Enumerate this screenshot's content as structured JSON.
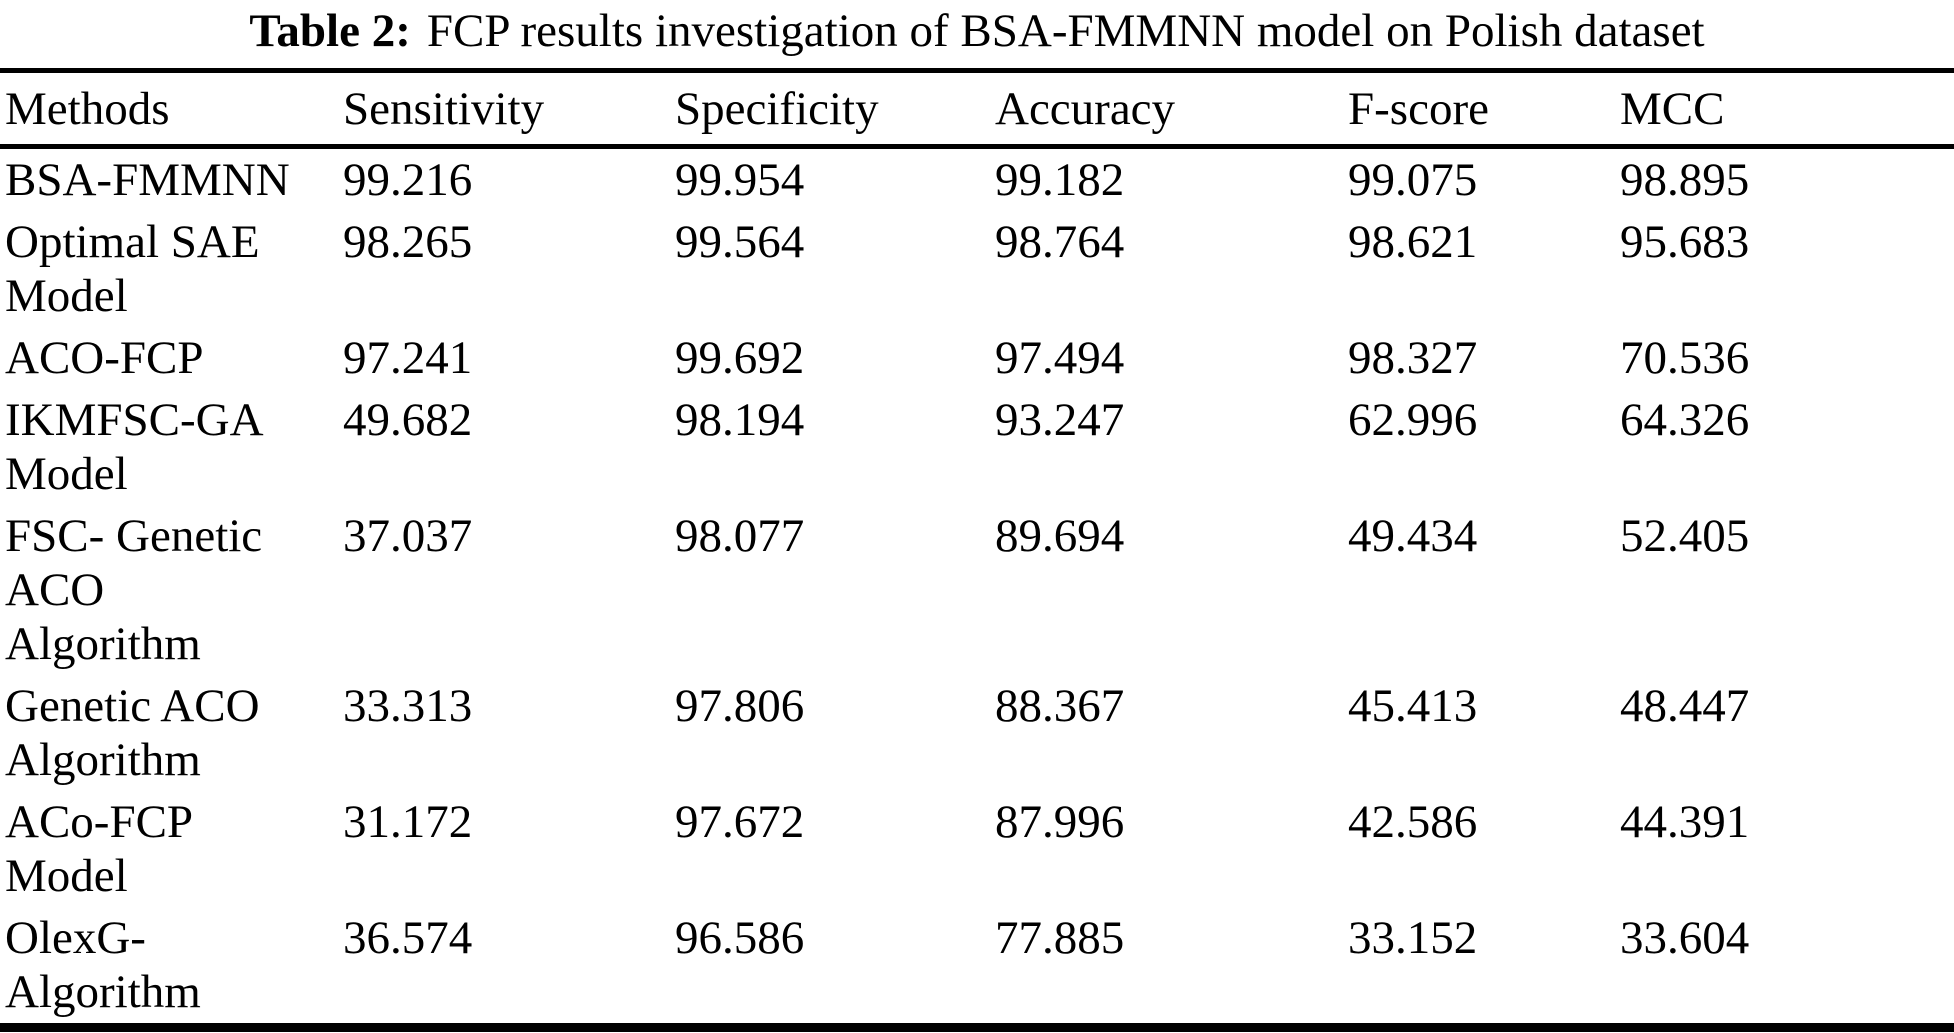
{
  "table": {
    "caption": {
      "label": "Table 2:",
      "text": "FCP results investigation of BSA-FMMNN model on Polish dataset"
    },
    "columns": [
      "Methods",
      "Sensitivity",
      "Specificity",
      "Accuracy",
      "F-score",
      "MCC"
    ],
    "rows": [
      {
        "method": "BSA-FMMNN",
        "values": [
          "99.216",
          "99.954",
          "99.182",
          "99.075",
          "98.895"
        ]
      },
      {
        "method": "Optimal SAE\nModel",
        "values": [
          "98.265",
          "99.564",
          "98.764",
          "98.621",
          "95.683"
        ]
      },
      {
        "method": "ACO-FCP",
        "values": [
          "97.241",
          "99.692",
          "97.494",
          "98.327",
          "70.536"
        ]
      },
      {
        "method": "IKMFSC-GA\nModel",
        "values": [
          "49.682",
          "98.194",
          "93.247",
          "62.996",
          "64.326"
        ]
      },
      {
        "method": "FSC- Genetic\nACO\nAlgorithm",
        "values": [
          "37.037",
          "98.077",
          "89.694",
          "49.434",
          "52.405"
        ]
      },
      {
        "method": "Genetic ACO\nAlgorithm",
        "values": [
          "33.313",
          "97.806",
          "88.367",
          "45.413",
          "48.447"
        ]
      },
      {
        "method": "ACo-FCP\nModel",
        "values": [
          "31.172",
          "97.672",
          "87.996",
          "42.586",
          "44.391"
        ]
      },
      {
        "method": "OlexG-\nAlgorithm",
        "values": [
          "36.574",
          "96.586",
          "77.885",
          "33.152",
          "33.604"
        ]
      }
    ],
    "colors": {
      "text": "#000000",
      "background": "#ffffff",
      "rule": "#000000"
    }
  }
}
